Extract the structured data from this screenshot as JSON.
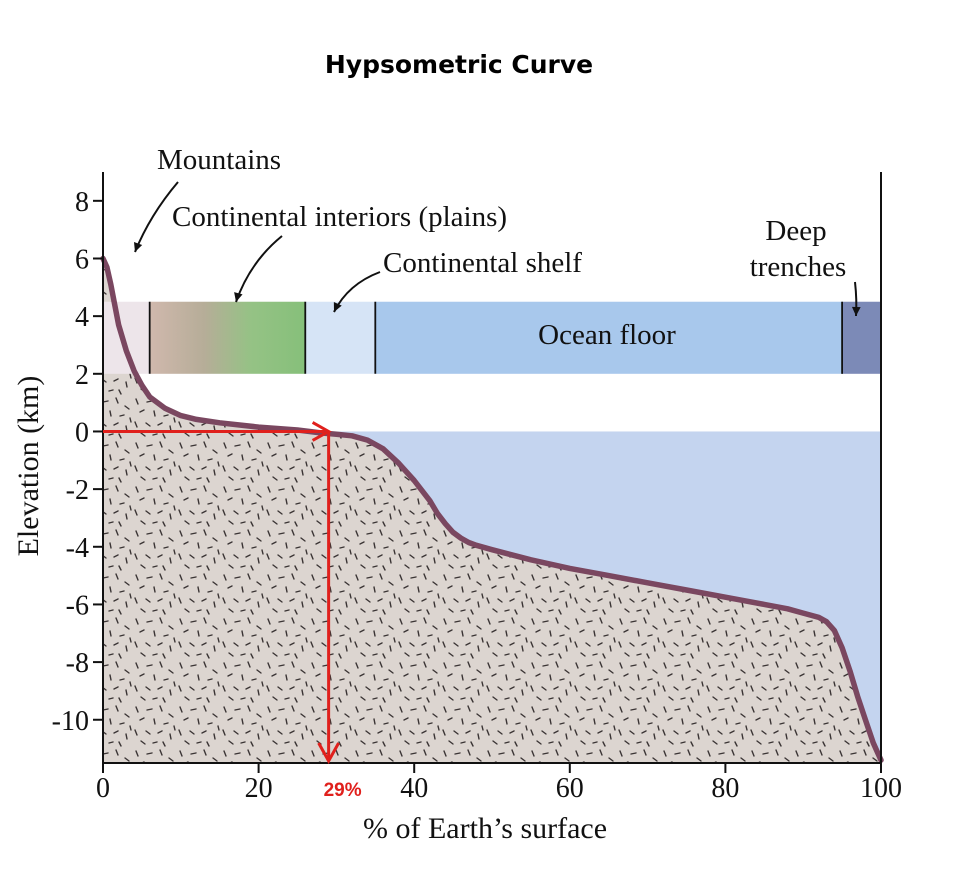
{
  "title": "Hypsometric Curve",
  "chart_data": {
    "type": "area",
    "xlabel": "% of Earth’s surface",
    "ylabel": "Elevation (km)",
    "xlim": [
      0,
      100
    ],
    "ylim": [
      -11.5,
      9
    ],
    "x_ticks": [
      0,
      20,
      40,
      60,
      80,
      100
    ],
    "y_ticks": [
      8,
      6,
      4,
      2,
      0,
      -2,
      -4,
      -6,
      -8,
      -10
    ],
    "grid": false,
    "curve": {
      "x": [
        0,
        0.5,
        1,
        1.5,
        2,
        3,
        4,
        5,
        6,
        8,
        10,
        12,
        15,
        20,
        25,
        28,
        30,
        32,
        34,
        36,
        38,
        40,
        42,
        43,
        44,
        45,
        46,
        47,
        48,
        50,
        55,
        60,
        65,
        70,
        75,
        80,
        85,
        88,
        90,
        92,
        93,
        94,
        95,
        96,
        97,
        98,
        98.5,
        99,
        99.5,
        100
      ],
      "elevation_km": [
        6,
        5.7,
        5.1,
        4.4,
        3.7,
        2.8,
        2.1,
        1.6,
        1.2,
        0.8,
        0.55,
        0.42,
        0.3,
        0.15,
        0.05,
        -0.05,
        -0.1,
        -0.15,
        -0.3,
        -0.6,
        -1.1,
        -1.7,
        -2.4,
        -2.85,
        -3.2,
        -3.5,
        -3.7,
        -3.85,
        -3.95,
        -4.1,
        -4.45,
        -4.75,
        -5.0,
        -5.25,
        -5.5,
        -5.75,
        -6.0,
        -6.15,
        -6.3,
        -6.45,
        -6.6,
        -6.9,
        -7.5,
        -8.3,
        -9.2,
        -10.0,
        -10.4,
        -10.8,
        -11.1,
        -11.4
      ]
    },
    "zones": [
      {
        "label": "Mountains",
        "start": 0,
        "end": 6,
        "color": "#ede5ea"
      },
      {
        "label": "Continental interiors (plains)",
        "start": 6,
        "end": 26,
        "color": "#8cc383"
      },
      {
        "label": "Continental shelf",
        "start": 26,
        "end": 35,
        "color": "#d6e4f6"
      },
      {
        "label": "Ocean floor",
        "start": 35,
        "end": 95,
        "color": "#a8c8ec"
      },
      {
        "label": "Deep trenches",
        "start": 95,
        "end": 100,
        "color": "#7c8ab7"
      }
    ],
    "zone_band_km": [
      2,
      4.5
    ],
    "annotations": {
      "mountains": "Mountains",
      "continental_interiors": "Continental interiors (plains)",
      "continental_shelf": "Continental shelf",
      "ocean_floor": "Ocean floor",
      "deep": "Deep",
      "trenches": "trenches"
    },
    "marker": {
      "x": 29,
      "label": "29%",
      "color": "#e0201c"
    },
    "colors": {
      "land": "#dcd5d0",
      "ocean": "#c4d4ef",
      "curve": "#7a4760",
      "land_band": "#ebe3e9"
    }
  }
}
